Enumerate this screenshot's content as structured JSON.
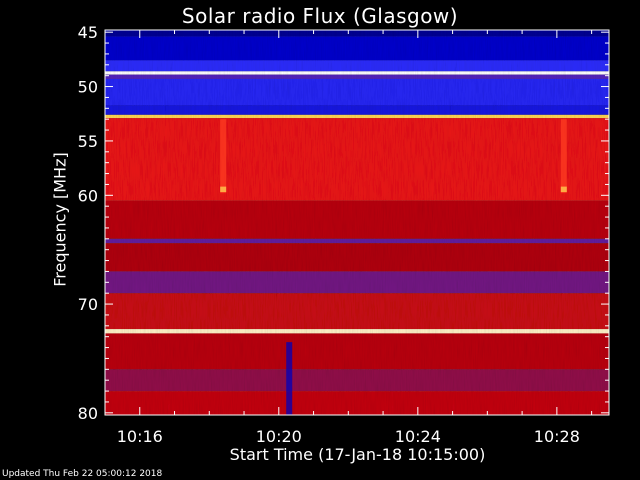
{
  "chart_data": {
    "type": "heatmap",
    "title": "Solar radio Flux (Glasgow)",
    "xlabel": "Start Time (17-Jan-18 10:15:00)",
    "ylabel": "Frequency [MHz]",
    "x_tick_labels": [
      "10:16",
      "10:20",
      "10:24",
      "10:28"
    ],
    "x_tick_minutes": [
      1,
      5,
      9,
      13
    ],
    "xlim_minutes_after_start": [
      0,
      14.5
    ],
    "y_tick_labels": [
      "45",
      "50",
      "55",
      "60",
      "70",
      "80"
    ],
    "y_tick_values": [
      45,
      50,
      55,
      60,
      70,
      80
    ],
    "ylim": [
      44.8,
      80.2
    ],
    "y_inverted": true,
    "grid": false,
    "colormap": [
      "#000044",
      "#0000c8",
      "#3030ff",
      "#b00010",
      "#ff1a1a",
      "#ffd040",
      "#ffffff"
    ],
    "bands_mhz": [
      {
        "from": 44.8,
        "to": 45.4,
        "level": 0.1
      },
      {
        "from": 45.4,
        "to": 47.6,
        "level": 0.18
      },
      {
        "from": 47.6,
        "to": 48.6,
        "level": 0.32
      },
      {
        "from": 48.6,
        "to": 48.9,
        "level": 1.0
      },
      {
        "from": 48.9,
        "to": 49.3,
        "level": 0.38
      },
      {
        "from": 49.3,
        "to": 51.7,
        "level": 0.3
      },
      {
        "from": 51.7,
        "to": 52.6,
        "level": 0.24
      },
      {
        "from": 52.6,
        "to": 52.9,
        "level": 0.85
      },
      {
        "from": 52.9,
        "to": 60.5,
        "level": 0.62
      },
      {
        "from": 60.5,
        "to": 64.0,
        "level": 0.52
      },
      {
        "from": 64.0,
        "to": 64.4,
        "level": 0.4
      },
      {
        "from": 64.4,
        "to": 67.0,
        "level": 0.5
      },
      {
        "from": 67.0,
        "to": 69.0,
        "level": 0.42
      },
      {
        "from": 69.0,
        "to": 72.3,
        "level": 0.55
      },
      {
        "from": 72.3,
        "to": 72.7,
        "level": 0.95
      },
      {
        "from": 72.7,
        "to": 76.0,
        "level": 0.52
      },
      {
        "from": 76.0,
        "to": 78.0,
        "level": 0.46
      },
      {
        "from": 78.0,
        "to": 80.2,
        "level": 0.54
      }
    ],
    "bursts": [
      {
        "minute": 3.4,
        "from_mhz": 53.0,
        "to_mhz": 59.8,
        "level": 0.7
      },
      {
        "minute": 13.2,
        "from_mhz": 53.0,
        "to_mhz": 59.8,
        "level": 0.7
      },
      {
        "minute": 3.4,
        "from_mhz": 59.2,
        "to_mhz": 59.7,
        "level": 0.85
      },
      {
        "minute": 13.2,
        "from_mhz": 59.2,
        "to_mhz": 59.7,
        "level": 0.85
      },
      {
        "minute": 5.3,
        "from_mhz": 73.5,
        "to_mhz": 80.2,
        "level": 0.15
      }
    ]
  },
  "footer": "Updated Thu Feb 22 05:00:12 2018"
}
